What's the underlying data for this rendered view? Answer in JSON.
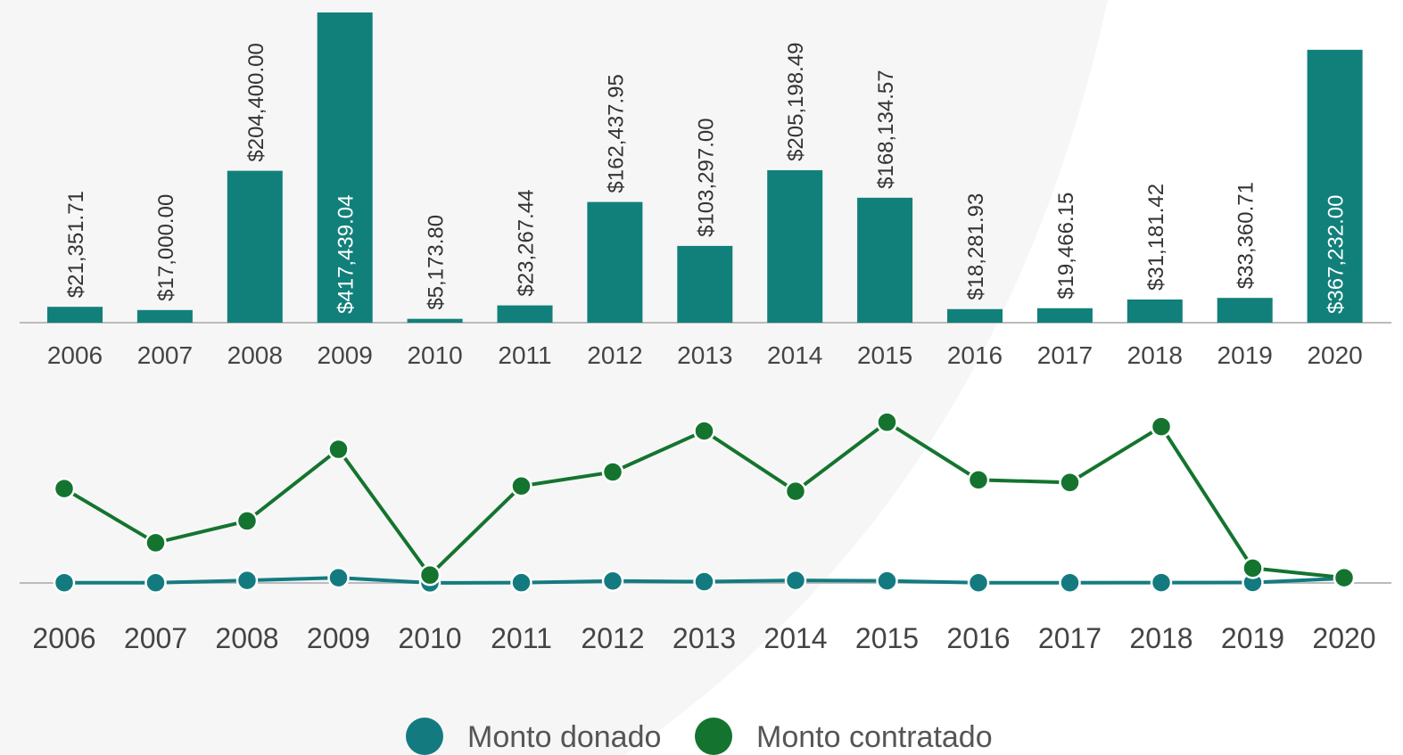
{
  "chart_data": [
    {
      "type": "bar",
      "categories": [
        "2006",
        "2007",
        "2008",
        "2009",
        "2010",
        "2011",
        "2012",
        "2013",
        "2014",
        "2015",
        "2016",
        "2017",
        "2018",
        "2019",
        "2020"
      ],
      "values": [
        21351.71,
        17000.0,
        204400.0,
        417439.04,
        5173.8,
        23267.44,
        162437.95,
        103297.0,
        205198.49,
        168134.57,
        18281.93,
        19466.15,
        31181.42,
        33360.71,
        367232.0
      ],
      "value_labels": [
        "$21,351.71",
        "$17,000.00",
        "$204,400.00",
        "$417,439.04",
        "$5,173.80",
        "$23,267.44",
        "$162,437.95",
        "$103,297.00",
        "$205,198.49",
        "$168,134.57",
        "$18,281.93",
        "$19,466.15",
        "$31,181.42",
        "$33,360.71",
        "$367,232.00"
      ],
      "color": "#12807a",
      "ylim": [
        0,
        417439.04
      ]
    },
    {
      "type": "line",
      "categories": [
        "2006",
        "2007",
        "2008",
        "2009",
        "2010",
        "2011",
        "2012",
        "2013",
        "2014",
        "2015",
        "2016",
        "2017",
        "2018",
        "2019",
        "2020"
      ],
      "series": [
        {
          "name": "Monto donado",
          "color": "#137b80",
          "values": [
            21351.71,
            17000.0,
            204400.0,
            417439.04,
            5173.8,
            23267.44,
            162437.95,
            103297.0,
            205198.49,
            168134.57,
            18281.93,
            19466.15,
            31181.42,
            33360.71,
            367232.0
          ]
        },
        {
          "name": "Monto contratado",
          "color": "#14742f",
          "values": [
            7560000,
            3220000,
            4970000,
            10710000,
            630000,
            7770000,
            8890000,
            12180000,
            7350000,
            12880000,
            8260000,
            8050000,
            12530000,
            1190000,
            420000
          ]
        }
      ],
      "ylim": [
        0,
        14000000
      ]
    }
  ]
}
